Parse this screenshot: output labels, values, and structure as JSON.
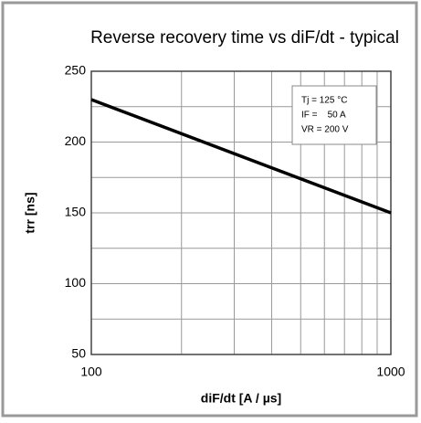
{
  "chart_data": {
    "type": "line",
    "title": "Reverse recovery time vs diF/dt - typical",
    "x_label": "diF/dt [A / µs]",
    "y_label": "trr [ns]",
    "annotations": [
      "Tj = 125 °C",
      "IF =    50 A",
      "VR = 200 V"
    ],
    "x": [
      100,
      1000
    ],
    "series": [
      {
        "color": "#000000",
        "values": [
          230,
          150
        ]
      }
    ],
    "x_log": true,
    "xlim": [
      100,
      1000
    ],
    "xticks": [
      100,
      1000
    ],
    "x_minor_grid": [
      200,
      300,
      400,
      500,
      600,
      700,
      800,
      900
    ],
    "ylim": [
      50,
      250
    ],
    "yticks": [
      50,
      100,
      150,
      200,
      250
    ],
    "y_minor_grid": [
      75,
      125,
      175,
      225
    ],
    "grid": true
  }
}
